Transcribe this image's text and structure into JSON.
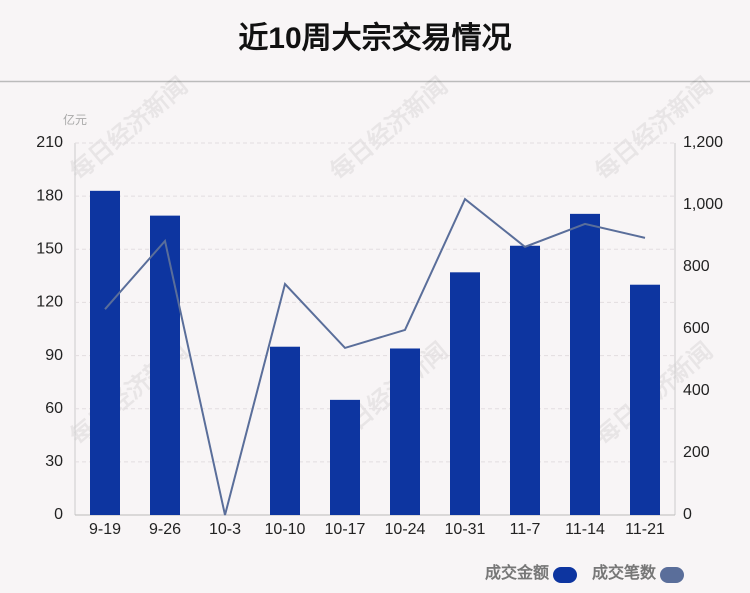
{
  "chart_data": {
    "type": "bar",
    "title": "近10周大宗交易情况",
    "y_unit": "亿元",
    "watermark": "每日经济新闻",
    "categories": [
      "9-19",
      "9-26",
      "10-3",
      "10-10",
      "10-17",
      "10-24",
      "10-31",
      "11-7",
      "11-14",
      "11-21"
    ],
    "series": [
      {
        "name": "成交金额",
        "type": "bar",
        "color": "#0d35a0",
        "values": [
          183,
          169,
          0,
          95,
          65,
          94,
          137,
          152,
          170,
          130
        ]
      },
      {
        "name": "成交笔数",
        "type": "line",
        "axis": "y2",
        "color": "#5a6e9a",
        "values": [
          664,
          884,
          0,
          745,
          539,
          597,
          1019,
          865,
          939,
          894
        ]
      }
    ],
    "ylim": [
      0,
      210
    ],
    "yticks": [
      0,
      30,
      60,
      90,
      120,
      150,
      180,
      210
    ],
    "y2lim": [
      0,
      1200
    ],
    "y2ticks": [
      0,
      200,
      400,
      600,
      800,
      {
        "value": 1000,
        "label": "1,000"
      },
      {
        "value": 1200,
        "label": "1,200"
      }
    ],
    "grid": true,
    "legend": "bottom-right"
  }
}
